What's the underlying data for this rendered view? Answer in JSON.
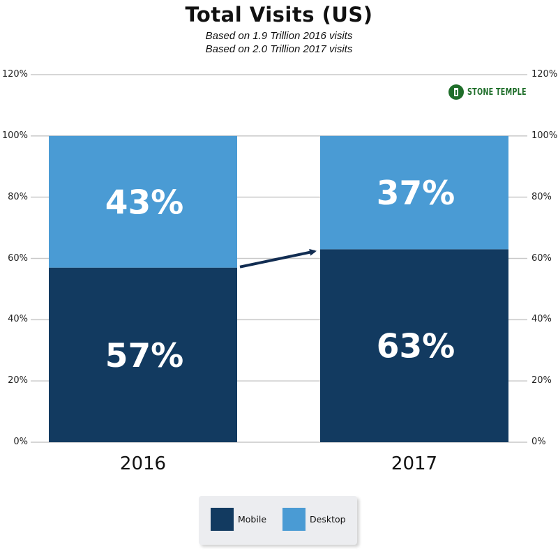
{
  "chart_data": {
    "type": "bar",
    "stacked": true,
    "title": "Total Visits (US)",
    "subtitle": [
      "Based on 1.9 Trillion 2016 visits",
      "Based on 2.0 Trillion 2017 visits"
    ],
    "categories": [
      "2016",
      "2017"
    ],
    "series": [
      {
        "name": "Mobile",
        "values": [
          57,
          63
        ],
        "labels": [
          "57%",
          "63%"
        ],
        "color": "#123a60"
      },
      {
        "name": "Desktop",
        "values": [
          43,
          37
        ],
        "labels": [
          "43%",
          "37%"
        ],
        "color": "#4a9bd4"
      }
    ],
    "ylim": [
      0,
      120
    ],
    "yticks": [
      "0%",
      "20%",
      "40%",
      "60%",
      "80%",
      "100%",
      "120%"
    ],
    "grid": true,
    "legend_position": "bottom",
    "annotation": "arrow pointing from 2016 Mobile to 2017 Mobile"
  },
  "logo": {
    "text": "STONE TEMPLE",
    "color": "#1f6e2a",
    "icon": "stone-temple-pillar-icon"
  }
}
